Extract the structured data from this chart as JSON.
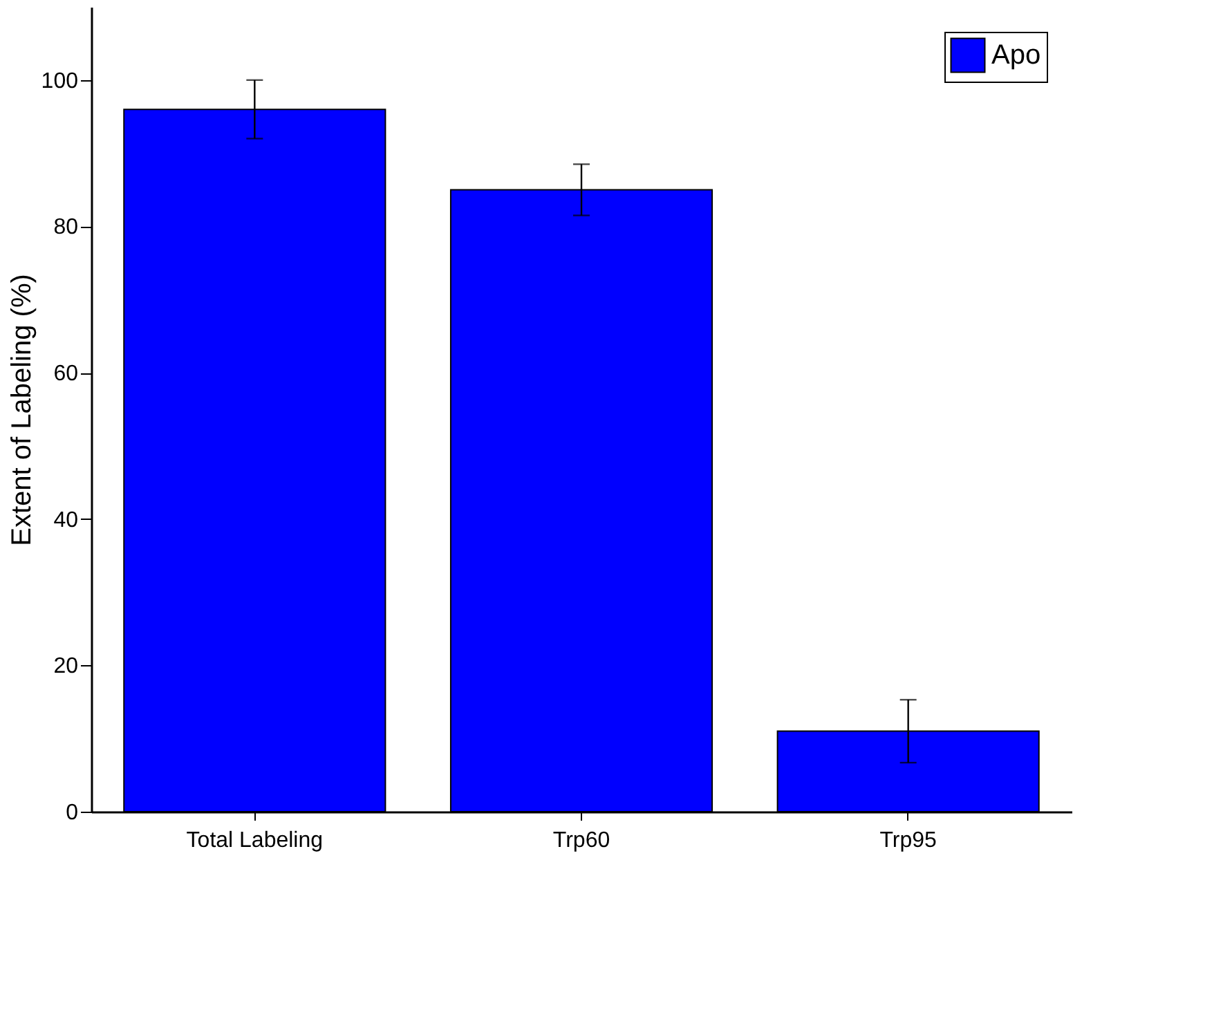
{
  "chart_data": {
    "type": "bar",
    "ylabel": "Extent of Labeling (%)",
    "categories": [
      "Total Labeling",
      "Trp60",
      "Trp95"
    ],
    "series": [
      {
        "name": "Apo",
        "color": "#0000ff",
        "values": [
          96,
          85,
          11
        ],
        "errors": [
          4,
          3.5,
          4.3
        ]
      }
    ],
    "ylim": [
      0,
      110
    ],
    "yticks": [
      0,
      20,
      40,
      60,
      80,
      100
    ],
    "grid": false,
    "legend": "top right"
  }
}
